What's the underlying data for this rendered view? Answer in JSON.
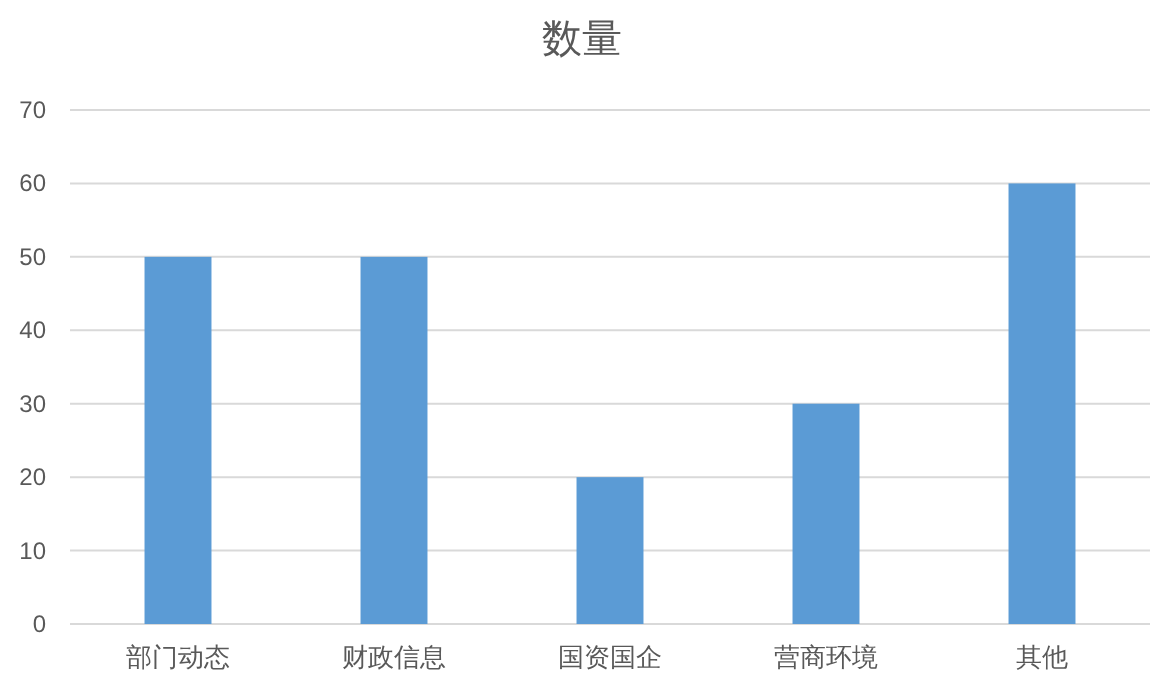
{
  "chart_data": {
    "type": "bar",
    "title": "数量",
    "categories": [
      "部门动态",
      "财政信息",
      "国资国企",
      "营商环境",
      "其他"
    ],
    "values": [
      50,
      50,
      20,
      30,
      60
    ],
    "color": "#5b9bd5",
    "ylim": [
      0,
      70
    ],
    "yticks": [
      0,
      10,
      20,
      30,
      40,
      50,
      60,
      70
    ],
    "grid": "y"
  }
}
